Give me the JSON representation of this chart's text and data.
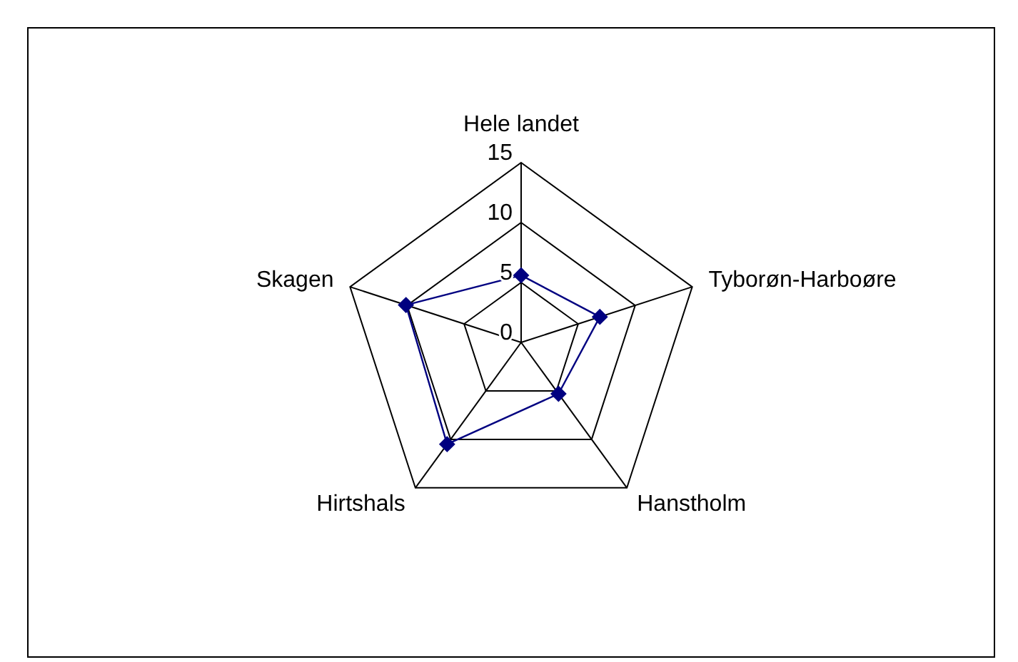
{
  "chart_data": {
    "type": "radar",
    "categories": [
      "Hele landet",
      "Tyborøn-Harboøre",
      "Hanstholm",
      "Hirtshals",
      "Skagen"
    ],
    "series": [
      {
        "color": "#000080",
        "values": [
          5.6,
          6.9,
          5.3,
          10.5,
          10.1
        ]
      }
    ],
    "ylim": [
      0,
      15
    ],
    "yticks": [
      0,
      5,
      10,
      15
    ],
    "marker": "diamond",
    "grid": true
  }
}
